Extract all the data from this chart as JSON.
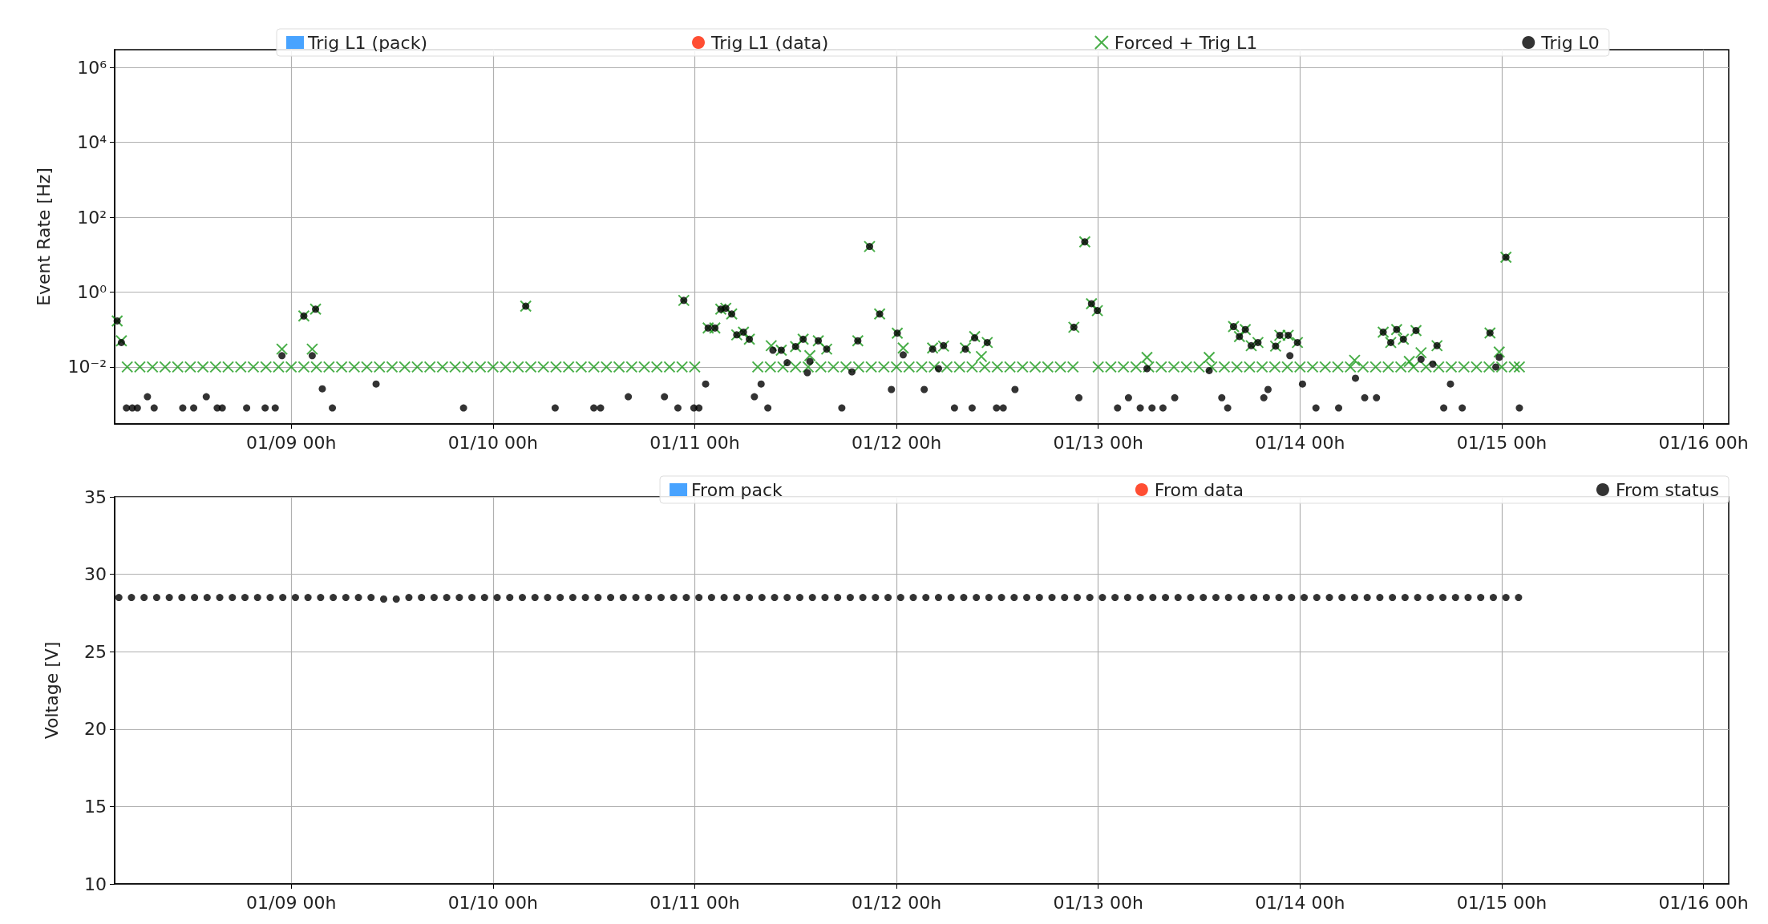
{
  "chart_data": [
    {
      "type": "scatter",
      "ylabel": "Event Rate [Hz]",
      "log": "y",
      "grid": true,
      "legend": "top",
      "xlim": [
        "--01-08T03:00",
        "--01-16T03:00"
      ],
      "xticks": [
        {
          "value": "--01-09T00:00",
          "label": "01/09 00h"
        },
        {
          "value": "--01-10T00:00",
          "label": "01/10 00h"
        },
        {
          "value": "--01-11T00:00",
          "label": "01/11 00h"
        },
        {
          "value": "--01-12T00:00",
          "label": "01/12 00h"
        },
        {
          "value": "--01-13T00:00",
          "label": "01/13 00h"
        },
        {
          "value": "--01-14T00:00",
          "label": "01/14 00h"
        },
        {
          "value": "--01-15T00:00",
          "label": "01/15 00h"
        },
        {
          "value": "--01-16T00:00",
          "label": "01/16 00h"
        }
      ],
      "ylim": [
        0.0003,
        3000000
      ],
      "yticks": [
        {
          "value": 0.01,
          "label": "10⁻²"
        },
        {
          "value": 1,
          "label": "10⁰"
        },
        {
          "value": 100,
          "label": "10²"
        },
        {
          "value": 10000,
          "label": "10⁴"
        },
        {
          "value": 1000000,
          "label": "10⁶"
        }
      ],
      "series": [
        {
          "name": "Trig L1 (pack)",
          "color": "#1a8cff",
          "marker": "square"
        },
        {
          "name": "Trig L1 (data)",
          "color": "#ff2200",
          "marker": "circle"
        },
        {
          "name": "Forced + Trig L1",
          "color": "#1a9a1a",
          "marker": "cross",
          "x": [
            "--01-08T04:30",
            "--01-08T06:00",
            "--01-08T07:30",
            "--01-08T09:00",
            "--01-08T10:30",
            "--01-08T12:00",
            "--01-08T13:30",
            "--01-08T15:00",
            "--01-08T16:30",
            "--01-08T18:00",
            "--01-08T19:30",
            "--01-08T21:00",
            "--01-08T22:30",
            "--01-09T00:00",
            "--01-09T01:30",
            "--01-09T03:00",
            "--01-09T04:30",
            "--01-09T06:00",
            "--01-09T07:30",
            "--01-09T09:00",
            "--01-09T10:30",
            "--01-09T12:00",
            "--01-09T13:30",
            "--01-09T15:00",
            "--01-09T16:30",
            "--01-09T18:00",
            "--01-09T19:30",
            "--01-09T21:00",
            "--01-09T22:30",
            "--01-10T00:00",
            "--01-10T01:30",
            "--01-10T03:00",
            "--01-10T04:30",
            "--01-10T06:00",
            "--01-10T07:30",
            "--01-10T09:00",
            "--01-10T10:30",
            "--01-10T12:00",
            "--01-10T13:30",
            "--01-10T15:00",
            "--01-10T16:30",
            "--01-10T18:00",
            "--01-10T19:30",
            "--01-10T21:00",
            "--01-10T22:30",
            "--01-11T00:00",
            "--01-11T07:30",
            "--01-11T09:00",
            "--01-11T10:30",
            "--01-11T12:00",
            "--01-11T13:30",
            "--01-11T15:00",
            "--01-11T16:30",
            "--01-11T18:00",
            "--01-11T19:30",
            "--01-11T21:00",
            "--01-11T22:30",
            "--01-12T00:00",
            "--01-12T01:30",
            "--01-12T03:00",
            "--01-12T04:30",
            "--01-12T06:00",
            "--01-12T07:30",
            "--01-12T09:00",
            "--01-12T10:30",
            "--01-12T12:00",
            "--01-12T13:30",
            "--01-12T15:00",
            "--01-12T16:30",
            "--01-12T18:00",
            "--01-12T19:30",
            "--01-12T21:00",
            "--01-13T00:00",
            "--01-13T01:30",
            "--01-13T03:00",
            "--01-13T04:30",
            "--01-13T06:00",
            "--01-13T07:30",
            "--01-13T09:00",
            "--01-13T10:30",
            "--01-13T12:00",
            "--01-13T13:30",
            "--01-13T15:00",
            "--01-13T16:30",
            "--01-13T18:00",
            "--01-13T19:30",
            "--01-13T21:00",
            "--01-13T22:30",
            "--01-14T00:00",
            "--01-14T01:30",
            "--01-14T03:00",
            "--01-14T04:30",
            "--01-14T06:00",
            "--01-14T07:30",
            "--01-14T09:00",
            "--01-14T10:30",
            "--01-14T12:00",
            "--01-14T13:30",
            "--01-14T15:00",
            "--01-14T16:30",
            "--01-14T18:00",
            "--01-14T19:30",
            "--01-14T21:00",
            "--01-14T22:30",
            "--01-15T00:00",
            "--01-15T01:30",
            "--01-08T03:18",
            "--01-08T03:48",
            "--01-08T22:54",
            "--01-09T01:30",
            "--01-09T02:54",
            "--01-09T02:30",
            "--01-10T03:54",
            "--01-10T22:42",
            "--01-11T01:36",
            "--01-11T02:24",
            "--01-11T03:06",
            "--01-11T03:42",
            "--01-11T04:24",
            "--01-11T05:00",
            "--01-11T05:48",
            "--01-11T06:30",
            "--01-11T09:06",
            "--01-11T10:18",
            "--01-11T12:00",
            "--01-11T12:54",
            "--01-11T13:42",
            "--01-11T14:42",
            "--01-11T15:42",
            "--01-11T19:24",
            "--01-11T20:48",
            "--01-11T22:00",
            "--01-12T00:06",
            "--01-12T00:48",
            "--01-12T04:18",
            "--01-12T05:36",
            "--01-12T08:12",
            "--01-12T09:18",
            "--01-12T10:48",
            "--01-12T10:06",
            "--01-12T21:06",
            "--01-12T22:24",
            "--01-12T23:12",
            "--01-12T23:54",
            "--01-13T05:48",
            "--01-13T13:12",
            "--01-13T16:06",
            "--01-13T16:48",
            "--01-13T17:30",
            "--01-13T18:12",
            "--01-13T19:00",
            "--01-13T21:06",
            "--01-13T21:36",
            "--01-13T22:36",
            "--01-13T23:42",
            "--01-14T06:30",
            "--01-14T09:54",
            "--01-14T10:48",
            "--01-14T11:30",
            "--01-14T12:18",
            "--01-14T13:00",
            "--01-14T13:48",
            "--01-14T14:24",
            "--01-14T16:18",
            "--01-14T22:36",
            "--01-14T23:42",
            "--01-15T00:30",
            "--01-15T02:06"
          ],
          "values": [
            0.01,
            0.01,
            0.01,
            0.01,
            0.01,
            0.01,
            0.01,
            0.01,
            0.01,
            0.01,
            0.01,
            0.01,
            0.01,
            0.01,
            0.01,
            0.01,
            0.01,
            0.01,
            0.01,
            0.01,
            0.01,
            0.01,
            0.01,
            0.01,
            0.01,
            0.01,
            0.01,
            0.01,
            0.01,
            0.01,
            0.01,
            0.01,
            0.01,
            0.01,
            0.01,
            0.01,
            0.01,
            0.01,
            0.01,
            0.01,
            0.01,
            0.01,
            0.01,
            0.01,
            0.01,
            0.01,
            0.01,
            0.01,
            0.01,
            0.01,
            0.01,
            0.01,
            0.01,
            0.01,
            0.01,
            0.01,
            0.01,
            0.01,
            0.01,
            0.01,
            0.01,
            0.01,
            0.01,
            0.01,
            0.01,
            0.01,
            0.01,
            0.01,
            0.01,
            0.01,
            0.01,
            0.01,
            0.01,
            0.01,
            0.01,
            0.01,
            0.01,
            0.01,
            0.01,
            0.01,
            0.01,
            0.01,
            0.01,
            0.01,
            0.01,
            0.01,
            0.01,
            0.01,
            0.01,
            0.01,
            0.01,
            0.01,
            0.01,
            0.01,
            0.01,
            0.01,
            0.01,
            0.01,
            0.01,
            0.01,
            0.01,
            0.01,
            0.01,
            0.01,
            0.01,
            0.01,
            0.17,
            0.05,
            0.03,
            0.23,
            0.35,
            0.03,
            0.42,
            0.6,
            0.11,
            0.11,
            0.35,
            0.37,
            0.26,
            0.072,
            0.085,
            0.055,
            0.037,
            0.028,
            0.035,
            0.055,
            0.02,
            0.05,
            0.03,
            0.05,
            16.5,
            0.26,
            0.08,
            0.032,
            0.032,
            0.036,
            0.032,
            0.065,
            0.045,
            0.019,
            0.115,
            22,
            0.49,
            0.32,
            0.018,
            0.018,
            0.12,
            0.065,
            0.1,
            0.037,
            0.045,
            0.036,
            0.07,
            0.07,
            0.045,
            0.015,
            0.085,
            0.045,
            0.1,
            0.055,
            0.014,
            0.094,
            0.024,
            0.037,
            0.081,
            0.025,
            8.5,
            0.01
          ]
        },
        {
          "name": "Trig L0",
          "color": "#000000",
          "marker": "circle",
          "x": [
            "--01-08T03:18",
            "--01-08T03:48",
            "--01-08T22:54",
            "--01-09T01:30",
            "--01-09T02:54",
            "--01-09T02:30",
            "--01-10T03:54",
            "--01-10T22:42",
            "--01-11T01:36",
            "--01-11T02:24",
            "--01-11T03:06",
            "--01-11T03:42",
            "--01-11T04:24",
            "--01-11T05:00",
            "--01-11T05:48",
            "--01-11T06:30",
            "--01-11T09:18",
            "--01-11T10:18",
            "--01-11T11:00",
            "--01-11T12:00",
            "--01-11T12:54",
            "--01-11T13:42",
            "--01-11T14:42",
            "--01-11T15:42",
            "--01-11T19:24",
            "--01-11T20:48",
            "--01-11T22:00",
            "--01-12T00:06",
            "--01-12T00:48",
            "--01-12T04:18",
            "--01-12T05:00",
            "--01-12T05:36",
            "--01-12T08:12",
            "--01-12T09:18",
            "--01-12T10:48",
            "--01-12T21:06",
            "--01-12T22:24",
            "--01-12T23:12",
            "--01-12T23:54",
            "--01-13T05:48",
            "--01-13T13:12",
            "--01-13T16:06",
            "--01-13T16:48",
            "--01-13T17:30",
            "--01-13T18:12",
            "--01-13T19:00",
            "--01-13T21:06",
            "--01-13T21:36",
            "--01-13T22:36",
            "--01-13T22:48",
            "--01-13T23:42",
            "--01-14T09:54",
            "--01-14T10:48",
            "--01-14T11:30",
            "--01-14T12:18",
            "--01-14T13:48",
            "--01-14T14:24",
            "--01-14T15:48",
            "--01-14T16:18",
            "--01-14T22:36",
            "--01-14T23:18",
            "--01-14T23:42",
            "--01-15T00:30",
            "--01-08T04:24",
            "--01-08T05:06",
            "--01-08T05:42",
            "--01-08T06:54",
            "--01-08T07:42",
            "--01-08T11:06",
            "--01-08T12:24",
            "--01-08T13:54",
            "--01-08T15:12",
            "--01-08T15:48",
            "--01-08T18:42",
            "--01-08T20:54",
            "--01-08T22:06",
            "--01-09T03:42",
            "--01-09T04:54",
            "--01-09T10:06",
            "--01-09T20:30",
            "--01-10T07:24",
            "--01-10T12:00",
            "--01-10T12:48",
            "--01-10T16:06",
            "--01-10T20:24",
            "--01-10T22:00",
            "--01-10T23:54",
            "--01-11T00:30",
            "--01-11T01:18",
            "--01-11T07:06",
            "--01-11T07:54",
            "--01-11T08:42",
            "--01-11T13:24",
            "--01-11T17:30",
            "--01-11T18:42",
            "--01-11T23:24",
            "--01-12T03:18",
            "--01-12T06:54",
            "--01-12T09:00",
            "--01-12T11:54",
            "--01-12T12:42",
            "--01-12T14:06",
            "--01-12T21:42",
            "--01-13T02:18",
            "--01-13T03:36",
            "--01-13T05:00",
            "--01-13T06:24",
            "--01-13T07:42",
            "--01-13T09:06",
            "--01-13T14:42",
            "--01-13T15:24",
            "--01-13T19:42",
            "--01-13T20:12",
            "--01-14T00:18",
            "--01-14T01:54",
            "--01-14T04:36",
            "--01-14T06:36",
            "--01-14T07:42",
            "--01-14T09:06",
            "--01-14T17:06",
            "--01-14T17:54",
            "--01-14T19:18",
            "--01-15T02:06"
          ],
          "values": [
            0.17,
            0.045,
            0.02,
            0.23,
            0.35,
            0.02,
            0.42,
            0.6,
            0.11,
            0.11,
            0.35,
            0.37,
            0.26,
            0.072,
            0.085,
            0.055,
            0.028,
            0.028,
            0.013,
            0.035,
            0.055,
            0.014,
            0.05,
            0.03,
            0.05,
            16.5,
            0.26,
            0.08,
            0.021,
            0.03,
            0.009,
            0.037,
            0.03,
            0.06,
            0.045,
            0.115,
            22,
            0.49,
            0.32,
            0.009,
            0.008,
            0.12,
            0.065,
            0.1,
            0.037,
            0.045,
            0.036,
            0.07,
            0.07,
            0.02,
            0.045,
            0.085,
            0.045,
            0.1,
            0.055,
            0.094,
            0.016,
            0.012,
            0.037,
            0.081,
            0.01,
            0.018,
            8.5,
            0.0008,
            0.0008,
            0.0008,
            0.0016,
            0.0008,
            0.0008,
            0.0008,
            0.0016,
            0.0008,
            0.0008,
            0.0008,
            0.0008,
            0.0008,
            0.0026,
            0.0008,
            0.0035,
            0.0008,
            0.0008,
            0.0008,
            0.0008,
            0.0016,
            0.0016,
            0.0008,
            0.0008,
            0.0008,
            0.0035,
            0.0016,
            0.0035,
            0.0008,
            0.007,
            0.0008,
            0.0074,
            0.0025,
            0.0025,
            0.0008,
            0.0008,
            0.0008,
            0.0008,
            0.0025,
            0.0015,
            0.0008,
            0.0015,
            0.0008,
            0.0008,
            0.0008,
            0.0015,
            0.0015,
            0.0008,
            0.0015,
            0.0025,
            0.0035,
            0.0008,
            0.0008,
            0.005,
            0.0015,
            0.0015,
            0.0008,
            0.0035,
            0.0008,
            0.0008
          ]
        }
      ]
    },
    {
      "type": "scatter",
      "ylabel": "Voltage [V]",
      "grid": true,
      "legend": "top right",
      "xlim": [
        "--01-08T03:00",
        "--01-16T03:00"
      ],
      "xticks": [
        {
          "value": "--01-09T00:00",
          "label": "01/09 00h"
        },
        {
          "value": "--01-10T00:00",
          "label": "01/10 00h"
        },
        {
          "value": "--01-11T00:00",
          "label": "01/11 00h"
        },
        {
          "value": "--01-12T00:00",
          "label": "01/12 00h"
        },
        {
          "value": "--01-13T00:00",
          "label": "01/13 00h"
        },
        {
          "value": "--01-14T00:00",
          "label": "01/14 00h"
        },
        {
          "value": "--01-15T00:00",
          "label": "01/15 00h"
        },
        {
          "value": "--01-16T00:00",
          "label": "01/16 00h"
        }
      ],
      "ylim": [
        10,
        35
      ],
      "yticks": [
        10,
        15,
        20,
        25,
        30,
        35
      ],
      "series": [
        {
          "name": "From pack",
          "color": "#1a8cff",
          "marker": "square"
        },
        {
          "name": "From data",
          "color": "#ff2200",
          "marker": "circle"
        },
        {
          "name": "From status",
          "color": "#000000",
          "marker": "circle",
          "x": [
            "--01-08T03:30",
            "--01-08T05:00",
            "--01-08T06:30",
            "--01-08T08:00",
            "--01-08T09:30",
            "--01-08T11:00",
            "--01-08T12:30",
            "--01-08T14:00",
            "--01-08T15:30",
            "--01-08T17:00",
            "--01-08T18:30",
            "--01-08T20:00",
            "--01-08T21:30",
            "--01-08T23:00",
            "--01-09T00:30",
            "--01-09T02:00",
            "--01-09T03:30",
            "--01-09T05:00",
            "--01-09T06:30",
            "--01-09T08:00",
            "--01-09T09:30",
            "--01-09T11:00",
            "--01-09T12:30",
            "--01-09T14:00",
            "--01-09T15:30",
            "--01-09T17:00",
            "--01-09T18:30",
            "--01-09T20:00",
            "--01-09T21:30",
            "--01-09T23:00",
            "--01-10T00:30",
            "--01-10T02:00",
            "--01-10T03:30",
            "--01-10T05:00",
            "--01-10T06:30",
            "--01-10T08:00",
            "--01-10T09:30",
            "--01-10T11:00",
            "--01-10T12:30",
            "--01-10T14:00",
            "--01-10T15:30",
            "--01-10T17:00",
            "--01-10T18:30",
            "--01-10T20:00",
            "--01-10T21:30",
            "--01-10T23:00",
            "--01-11T00:30",
            "--01-11T02:00",
            "--01-11T03:30",
            "--01-11T05:00",
            "--01-11T06:30",
            "--01-11T08:00",
            "--01-11T09:30",
            "--01-11T11:00",
            "--01-11T12:30",
            "--01-11T14:00",
            "--01-11T15:30",
            "--01-11T17:00",
            "--01-11T18:30",
            "--01-11T20:00",
            "--01-11T21:30",
            "--01-11T23:00",
            "--01-12T00:30",
            "--01-12T02:00",
            "--01-12T03:30",
            "--01-12T05:00",
            "--01-12T06:30",
            "--01-12T08:00",
            "--01-12T09:30",
            "--01-12T11:00",
            "--01-12T12:30",
            "--01-12T14:00",
            "--01-12T15:30",
            "--01-12T17:00",
            "--01-12T18:30",
            "--01-12T20:00",
            "--01-12T21:30",
            "--01-12T23:00",
            "--01-13T00:30",
            "--01-13T02:00",
            "--01-13T03:30",
            "--01-13T05:00",
            "--01-13T06:30",
            "--01-13T08:00",
            "--01-13T09:30",
            "--01-13T11:00",
            "--01-13T12:30",
            "--01-13T14:00",
            "--01-13T15:30",
            "--01-13T17:00",
            "--01-13T18:30",
            "--01-13T20:00",
            "--01-13T21:30",
            "--01-13T23:00",
            "--01-14T00:30",
            "--01-14T02:00",
            "--01-14T03:30",
            "--01-14T05:00",
            "--01-14T06:30",
            "--01-14T08:00",
            "--01-14T09:30",
            "--01-14T11:00",
            "--01-14T12:30",
            "--01-14T14:00",
            "--01-14T15:30",
            "--01-14T17:00",
            "--01-14T18:30",
            "--01-14T20:00",
            "--01-14T21:30",
            "--01-14T23:00",
            "--01-15T00:30",
            "--01-15T02:00"
          ],
          "values": [
            28.5,
            28.5,
            28.5,
            28.5,
            28.5,
            28.5,
            28.5,
            28.5,
            28.5,
            28.5,
            28.5,
            28.5,
            28.5,
            28.5,
            28.5,
            28.5,
            28.5,
            28.5,
            28.5,
            28.5,
            28.5,
            28.4,
            28.4,
            28.5,
            28.5,
            28.5,
            28.5,
            28.5,
            28.5,
            28.5,
            28.5,
            28.5,
            28.5,
            28.5,
            28.5,
            28.5,
            28.5,
            28.5,
            28.5,
            28.5,
            28.5,
            28.5,
            28.5,
            28.5,
            28.5,
            28.5,
            28.5,
            28.5,
            28.5,
            28.5,
            28.5,
            28.5,
            28.5,
            28.5,
            28.5,
            28.5,
            28.5,
            28.5,
            28.5,
            28.5,
            28.5,
            28.5,
            28.5,
            28.5,
            28.5,
            28.5,
            28.5,
            28.5,
            28.5,
            28.5,
            28.5,
            28.5,
            28.5,
            28.5,
            28.5,
            28.5,
            28.5,
            28.5,
            28.5,
            28.5,
            28.5,
            28.5,
            28.5,
            28.5,
            28.5,
            28.5,
            28.5,
            28.5,
            28.5,
            28.5,
            28.5,
            28.5,
            28.5,
            28.5,
            28.5,
            28.5,
            28.5,
            28.5,
            28.5,
            28.5,
            28.5,
            28.5,
            28.5,
            28.5,
            28.5,
            28.5,
            28.5,
            28.5,
            28.5,
            28.5,
            28.5,
            28.5
          ]
        }
      ]
    }
  ]
}
